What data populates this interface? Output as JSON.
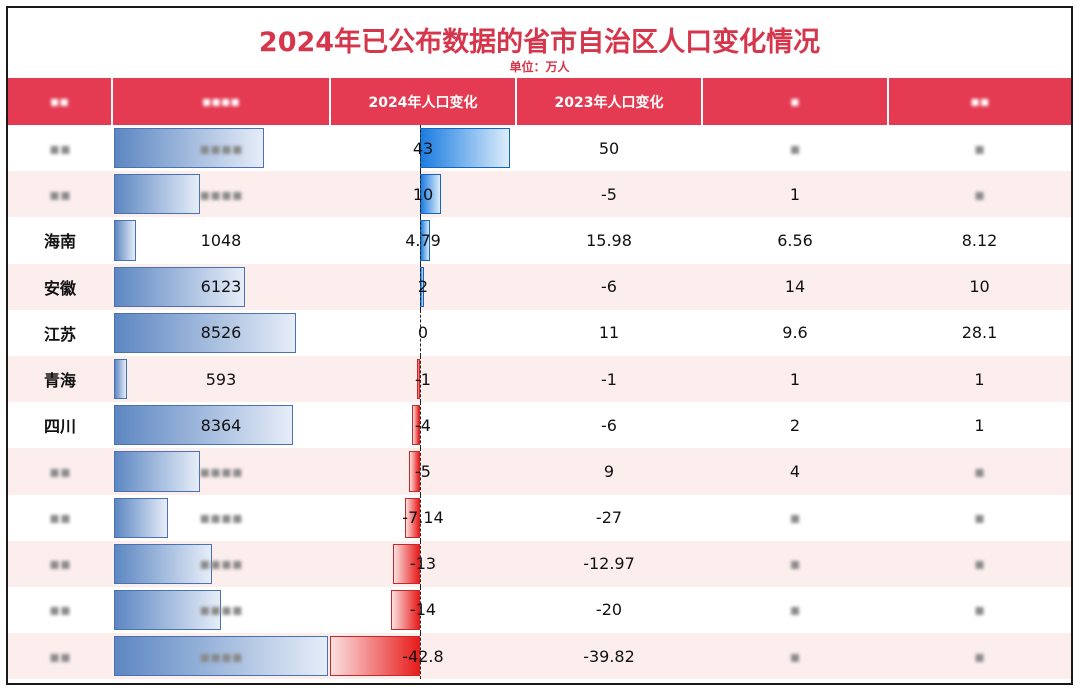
{
  "title": "2024年已公布数据的省市自治区人口变化情况",
  "subtitle": "单位：万人",
  "colors": {
    "header_bg": "#e43b52",
    "title": "#d6364c",
    "pos_bar": "#1b7de0",
    "neg_bar": "#e81c1c",
    "pop_bar": "#5d87c2",
    "row_alt": "#fdeeee"
  },
  "headers": [
    "",
    "",
    "2024年人口变化",
    "2023年人口变化",
    "",
    ""
  ],
  "pop_max": 10000,
  "chg_range": [
    -42.8,
    43
  ],
  "rows": [
    {
      "name": "",
      "pop": "",
      "pop_level": 7000,
      "chg2024": "43",
      "chg_num": 43,
      "chg2023": "50",
      "c5": "",
      "c6": ""
    },
    {
      "name": "",
      "pop": "",
      "pop_level": 4000,
      "chg2024": "10",
      "chg_num": 10,
      "chg2023": "-5",
      "c5": "1",
      "c6": ""
    },
    {
      "name": "海南",
      "pop": "1048",
      "pop_level": 1048,
      "chg2024": "4.79",
      "chg_num": 4.79,
      "chg2023": "15.98",
      "c5": "6.56",
      "c6": "8.12"
    },
    {
      "name": "安徽",
      "pop": "6123",
      "pop_level": 6123,
      "chg2024": "2",
      "chg_num": 2,
      "chg2023": "-6",
      "c5": "14",
      "c6": "10"
    },
    {
      "name": "江苏",
      "pop": "8526",
      "pop_level": 8526,
      "chg2024": "0",
      "chg_num": 0,
      "chg2023": "11",
      "c5": "9.6",
      "c6": "28.1"
    },
    {
      "name": "青海",
      "pop": "593",
      "pop_level": 593,
      "chg2024": "-1",
      "chg_num": -1,
      "chg2023": "-1",
      "c5": "1",
      "c6": "1"
    },
    {
      "name": "四川",
      "pop": "8364",
      "pop_level": 8364,
      "chg2024": "-4",
      "chg_num": -4,
      "chg2023": "-6",
      "c5": "2",
      "c6": "1"
    },
    {
      "name": "",
      "pop": "",
      "pop_level": 4000,
      "chg2024": "-5",
      "chg_num": -5,
      "chg2023": "9",
      "c5": "4",
      "c6": ""
    },
    {
      "name": "",
      "pop": "",
      "pop_level": 2500,
      "chg2024": "-7.14",
      "chg_num": -7.14,
      "chg2023": "-27",
      "c5": "",
      "c6": ""
    },
    {
      "name": "",
      "pop": "",
      "pop_level": 4600,
      "chg2024": "-13",
      "chg_num": -13,
      "chg2023": "-12.97",
      "c5": "",
      "c6": ""
    },
    {
      "name": "",
      "pop": "",
      "pop_level": 5000,
      "chg2024": "-14",
      "chg_num": -14,
      "chg2023": "-20",
      "c5": "",
      "c6": ""
    },
    {
      "name": "",
      "pop": "",
      "pop_level": 10000,
      "chg2024": "-42.8",
      "chg_num": -42.8,
      "chg2023": "-39.82",
      "c5": "",
      "c6": ""
    }
  ]
}
